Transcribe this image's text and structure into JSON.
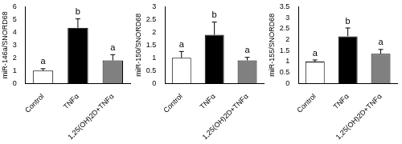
{
  "chart_data": [
    {
      "type": "bar",
      "y_label": "miR-146a/SNORD68",
      "categories": [
        "Control",
        "TNFα",
        "1,25(OH)2D+TNFα"
      ],
      "values": [
        1.0,
        4.35,
        1.8
      ],
      "errors": [
        0.15,
        0.7,
        0.45
      ],
      "letters": [
        "a",
        "b",
        "a"
      ],
      "colors": [
        "#ffffff",
        "#000000",
        "#808080"
      ],
      "ylim": [
        0,
        6
      ],
      "yticks": [
        0,
        1,
        2,
        3,
        4,
        5,
        6
      ],
      "grid": false
    },
    {
      "type": "bar",
      "y_label": "miR-150/SNORD68",
      "categories": [
        "Control",
        "TNFα",
        "1,25(OH)2D+TNFα"
      ],
      "values": [
        1.0,
        1.9,
        0.9
      ],
      "errors": [
        0.25,
        0.5,
        0.12
      ],
      "letters": [
        "a",
        "b",
        "a"
      ],
      "colors": [
        "#ffffff",
        "#000000",
        "#808080"
      ],
      "ylim": [
        0,
        3
      ],
      "yticks": [
        0,
        0.5,
        1,
        1.5,
        2,
        2.5,
        3
      ],
      "grid": false
    },
    {
      "type": "bar",
      "y_label": "miR-155/SNORD68",
      "categories": [
        "Control",
        "TNFα",
        "1,25(OH)2D+TNFα"
      ],
      "values": [
        1.0,
        2.15,
        1.35
      ],
      "errors": [
        0.07,
        0.38,
        0.2
      ],
      "letters": [
        "a",
        "b",
        "a"
      ],
      "colors": [
        "#ffffff",
        "#000000",
        "#808080"
      ],
      "ylim": [
        0,
        3.5
      ],
      "yticks": [
        0,
        0.5,
        1,
        1.5,
        2,
        2.5,
        3,
        3.5
      ],
      "grid": false
    }
  ]
}
